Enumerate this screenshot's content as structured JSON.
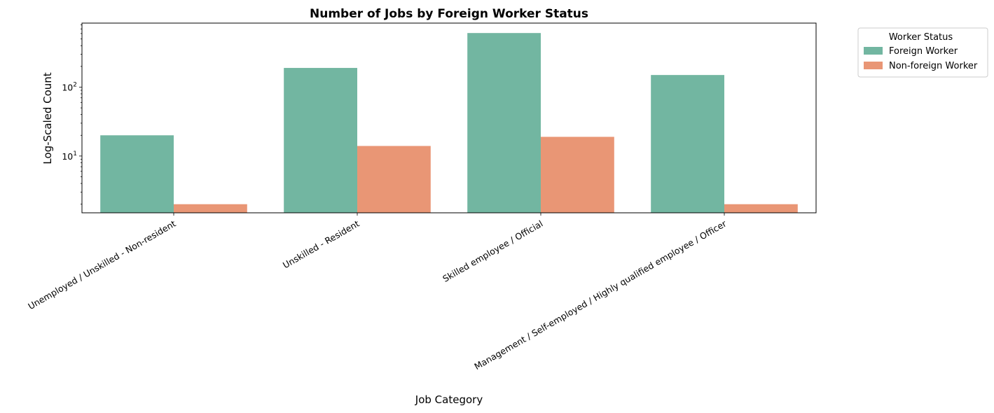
{
  "chart_data": {
    "type": "bar",
    "title": "Number of Jobs by Foreign Worker Status",
    "xlabel": "Job Category",
    "ylabel": "Log-Scaled Count",
    "yscale": "log",
    "ylim": [
      1.5,
      850
    ],
    "yticks": [
      {
        "value": 10,
        "base": "10",
        "exp": "1"
      },
      {
        "value": 100,
        "base": "10",
        "exp": "2"
      }
    ],
    "categories": [
      "Unemployed / Unskilled - Non-resident",
      "Unskilled - Resident",
      "Skilled employee / Official",
      "Management / Self-employed / Highly qualified employee / Officer"
    ],
    "series": [
      {
        "name": "Foreign Worker",
        "color": "#72b6a1",
        "values": [
          20,
          190,
          610,
          150
        ]
      },
      {
        "name": "Non-foreign Worker",
        "color": "#e99675",
        "values": [
          2,
          14,
          19,
          2
        ]
      }
    ],
    "legend": {
      "title": "Worker Status",
      "placement": "outside-top-right"
    },
    "grid": false
  }
}
